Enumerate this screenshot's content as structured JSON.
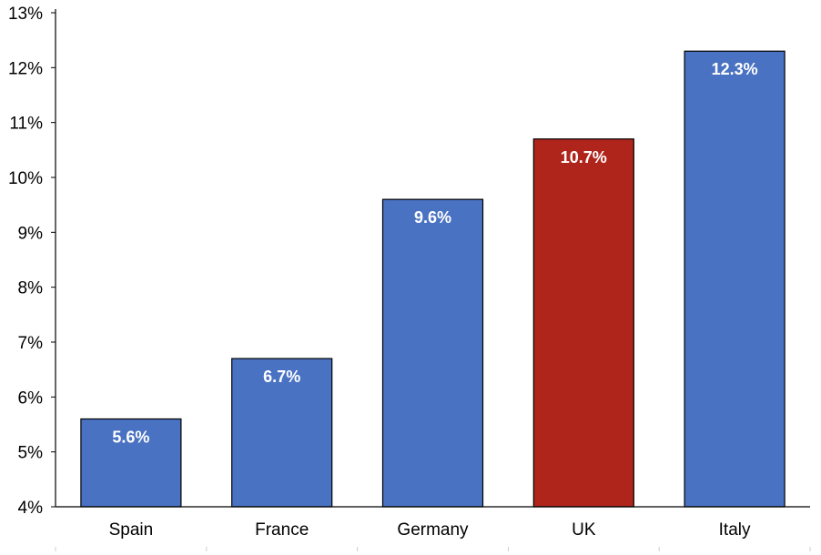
{
  "chart_data": {
    "type": "bar",
    "categories": [
      "Spain",
      "France",
      "Germany",
      "UK",
      "Italy"
    ],
    "values": [
      5.6,
      6.7,
      9.6,
      10.7,
      12.3
    ],
    "data_labels": [
      "5.6%",
      "6.7%",
      "9.6%",
      "10.7%",
      "12.3%"
    ],
    "bar_colors": [
      "#4A72C2",
      "#4A72C2",
      "#4A72C2",
      "#B0251B",
      "#4A72C2"
    ],
    "ylim": [
      4,
      13
    ],
    "yticks": [
      4,
      5,
      6,
      7,
      8,
      9,
      10,
      11,
      12,
      13
    ],
    "ytick_labels": [
      "4%",
      "5%",
      "6%",
      "7%",
      "8%",
      "9%",
      "10%",
      "11%",
      "12%",
      "13%"
    ],
    "grid": false,
    "legend": "none",
    "title": "",
    "xlabel": "",
    "ylabel": ""
  }
}
